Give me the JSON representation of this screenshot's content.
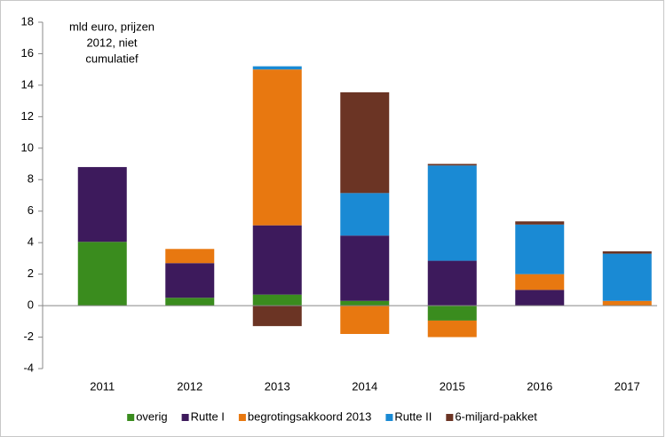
{
  "chart_data": {
    "type": "stacked_bar",
    "annotation": [
      "mld euro, prijzen",
      "2012, niet",
      "cumulatief"
    ],
    "categories": [
      "2011",
      "2012",
      "2013",
      "2014",
      "2015",
      "2016",
      "2017"
    ],
    "series": [
      {
        "name": "overig",
        "color": "#3a8c1e",
        "values": [
          4.05,
          0.5,
          0.7,
          0.3,
          -0.95,
          0,
          0
        ]
      },
      {
        "name": "Rutte I",
        "color": "#3d1a5c",
        "values": [
          4.75,
          2.2,
          4.4,
          4.15,
          2.85,
          1.0,
          0
        ]
      },
      {
        "name": "begrotingsakkoord 2013",
        "color": "#e87810",
        "values": [
          0,
          0.9,
          9.9,
          -1.8,
          -1.05,
          1.0,
          0.3
        ]
      },
      {
        "name": "Rutte II",
        "color": "#1a8ad4",
        "values": [
          0,
          0,
          0.2,
          2.7,
          6.05,
          3.15,
          3.0
        ]
      },
      {
        "name": "6-miljard-pakket",
        "color": "#6b3424",
        "values": [
          0,
          0,
          -1.3,
          6.4,
          0.1,
          0.2,
          0.15
        ]
      }
    ],
    "ylim": [
      -4,
      18
    ],
    "yticks": [
      -4,
      -2,
      0,
      2,
      4,
      6,
      8,
      10,
      12,
      14,
      16,
      18
    ],
    "legend": "bottom"
  }
}
